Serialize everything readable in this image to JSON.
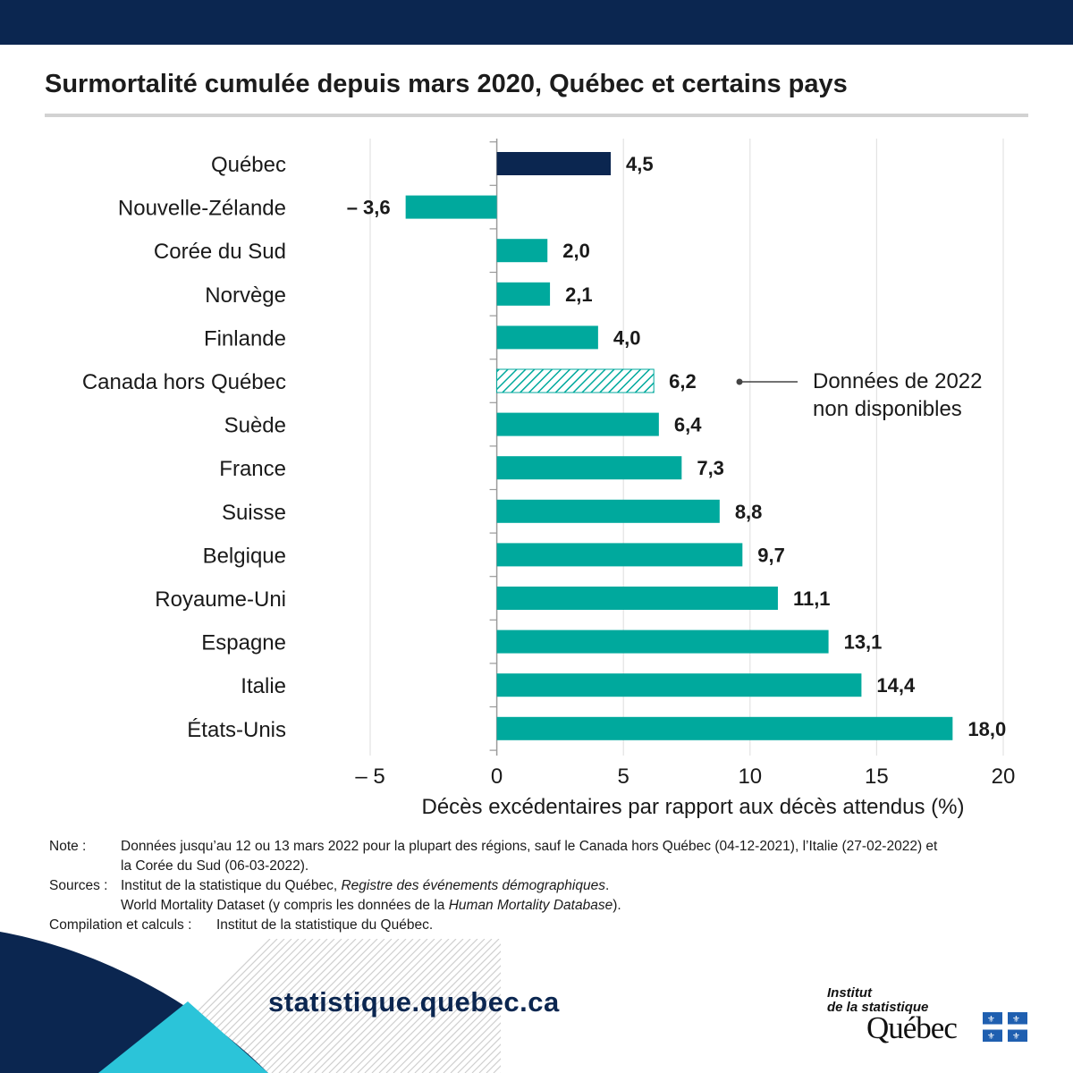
{
  "title": "Surmortalité cumulée depuis mars 2020, Québec et certains pays",
  "annotation": {
    "line1": "Données de 2022",
    "line2": "non disponibles"
  },
  "notes": {
    "note_label": "Note :",
    "note_text_line1": "Données jusqu’au 12 ou 13 mars 2022 pour la plupart des régions, sauf le Canada hors Québec (04-12-2021), l’Italie (27-02-2022) et",
    "note_text_line2": "la Corée du Sud (06-03-2022).",
    "sources_label": "Sources :",
    "source1_a": "Institut de la statistique du Québec, ",
    "source1_b": "Registre des événements démographiques",
    "source1_c": ".",
    "source2_a": "World Mortality Dataset (y compris les données de la ",
    "source2_b": "Human Mortality Database",
    "source2_c": ").",
    "compilation_label": "Compilation et calculs :",
    "compilation_text": "Institut de la statistique du Québec."
  },
  "footer": {
    "url": "statistique.quebec.ca",
    "logo_line1": "Institut",
    "logo_line2": "de la statistique",
    "logo_big": "Québec"
  },
  "colors": {
    "navy": "#0b2650",
    "teal": "#00a99d",
    "cyan": "#2bc4d9"
  },
  "chart_data": {
    "type": "bar",
    "orientation": "horizontal",
    "categories": [
      "Québec",
      "Nouvelle-Zélande",
      "Corée du Sud",
      "Norvège",
      "Finlande",
      "Canada hors Québec",
      "Suède",
      "France",
      "Suisse",
      "Belgique",
      "Royaume-Uni",
      "Espagne",
      "Italie",
      "États-Unis"
    ],
    "values": [
      4.5,
      -3.6,
      2.0,
      2.1,
      4.0,
      6.2,
      6.4,
      7.3,
      8.8,
      9.7,
      11.1,
      13.1,
      14.4,
      18.0
    ],
    "value_labels": [
      "4,5",
      "– 3,6",
      "2,0",
      "2,1",
      "4,0",
      "6,2",
      "6,4",
      "7,3",
      "8,8",
      "9,7",
      "11,1",
      "13,1",
      "14,4",
      "18,0"
    ],
    "highlight": [
      "Québec"
    ],
    "hatched": [
      "Canada hors Québec"
    ],
    "xlim": [
      -5,
      20
    ],
    "xticks": [
      -5,
      0,
      5,
      10,
      15,
      20
    ],
    "xtick_labels": [
      "– 5",
      "0",
      "5",
      "10",
      "15",
      "20"
    ],
    "xlabel": "Décès excédentaires par rapport aux décès attendus (%)",
    "ylabel": "",
    "grid": true
  }
}
